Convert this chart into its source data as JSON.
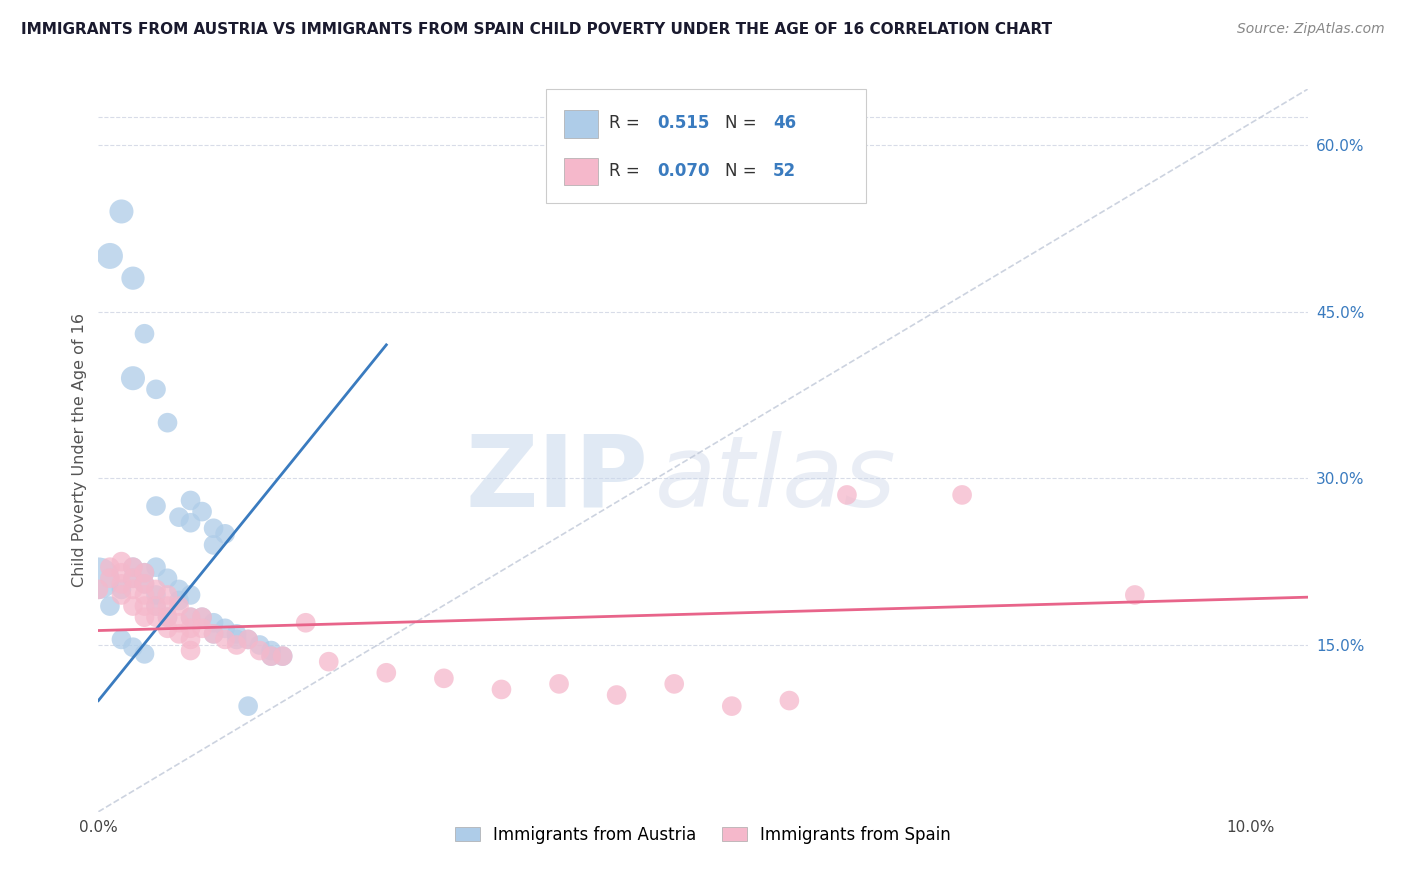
{
  "title": "IMMIGRANTS FROM AUSTRIA VS IMMIGRANTS FROM SPAIN CHILD POVERTY UNDER THE AGE OF 16 CORRELATION CHART",
  "source": "Source: ZipAtlas.com",
  "ylabel": "Child Poverty Under the Age of 16",
  "ylabel_right_labels": [
    "15.0%",
    "30.0%",
    "45.0%",
    "60.0%"
  ],
  "ylabel_right_values": [
    0.15,
    0.3,
    0.45,
    0.6
  ],
  "R_austria": 0.515,
  "N_austria": 46,
  "R_spain": 0.07,
  "N_spain": 52,
  "austria_color": "#aecce8",
  "spain_color": "#f5b8cb",
  "austria_line_color": "#3a7bbf",
  "spain_line_color": "#e8648a",
  "diagonal_color": "#c0c8d8",
  "austria_points": [
    [
      0.0,
      0.21
    ],
    [
      0.001,
      0.5
    ],
    [
      0.002,
      0.54
    ],
    [
      0.003,
      0.48
    ],
    [
      0.003,
      0.39
    ],
    [
      0.004,
      0.43
    ],
    [
      0.005,
      0.38
    ],
    [
      0.006,
      0.35
    ],
    [
      0.005,
      0.275
    ],
    [
      0.007,
      0.265
    ],
    [
      0.008,
      0.28
    ],
    [
      0.008,
      0.26
    ],
    [
      0.009,
      0.27
    ],
    [
      0.01,
      0.255
    ],
    [
      0.01,
      0.24
    ],
    [
      0.011,
      0.25
    ],
    [
      0.001,
      0.185
    ],
    [
      0.002,
      0.2
    ],
    [
      0.003,
      0.22
    ],
    [
      0.003,
      0.21
    ],
    [
      0.004,
      0.215
    ],
    [
      0.004,
      0.205
    ],
    [
      0.005,
      0.22
    ],
    [
      0.005,
      0.195
    ],
    [
      0.006,
      0.21
    ],
    [
      0.005,
      0.185
    ],
    [
      0.006,
      0.175
    ],
    [
      0.007,
      0.2
    ],
    [
      0.007,
      0.19
    ],
    [
      0.008,
      0.195
    ],
    [
      0.008,
      0.175
    ],
    [
      0.009,
      0.175
    ],
    [
      0.01,
      0.17
    ],
    [
      0.01,
      0.16
    ],
    [
      0.011,
      0.165
    ],
    [
      0.012,
      0.16
    ],
    [
      0.012,
      0.155
    ],
    [
      0.013,
      0.155
    ],
    [
      0.014,
      0.15
    ],
    [
      0.015,
      0.145
    ],
    [
      0.015,
      0.14
    ],
    [
      0.016,
      0.14
    ],
    [
      0.002,
      0.155
    ],
    [
      0.003,
      0.148
    ],
    [
      0.004,
      0.142
    ],
    [
      0.013,
      0.095
    ]
  ],
  "spain_points": [
    [
      0.0,
      0.2
    ],
    [
      0.001,
      0.22
    ],
    [
      0.001,
      0.21
    ],
    [
      0.002,
      0.225
    ],
    [
      0.002,
      0.215
    ],
    [
      0.002,
      0.205
    ],
    [
      0.002,
      0.195
    ],
    [
      0.003,
      0.22
    ],
    [
      0.003,
      0.21
    ],
    [
      0.003,
      0.2
    ],
    [
      0.003,
      0.185
    ],
    [
      0.004,
      0.215
    ],
    [
      0.004,
      0.205
    ],
    [
      0.004,
      0.195
    ],
    [
      0.004,
      0.185
    ],
    [
      0.004,
      0.175
    ],
    [
      0.005,
      0.2
    ],
    [
      0.005,
      0.185
    ],
    [
      0.005,
      0.175
    ],
    [
      0.006,
      0.195
    ],
    [
      0.006,
      0.185
    ],
    [
      0.006,
      0.175
    ],
    [
      0.006,
      0.165
    ],
    [
      0.007,
      0.185
    ],
    [
      0.007,
      0.17
    ],
    [
      0.007,
      0.16
    ],
    [
      0.008,
      0.175
    ],
    [
      0.008,
      0.165
    ],
    [
      0.008,
      0.155
    ],
    [
      0.008,
      0.145
    ],
    [
      0.009,
      0.175
    ],
    [
      0.009,
      0.165
    ],
    [
      0.01,
      0.16
    ],
    [
      0.011,
      0.155
    ],
    [
      0.012,
      0.15
    ],
    [
      0.013,
      0.155
    ],
    [
      0.014,
      0.145
    ],
    [
      0.015,
      0.14
    ],
    [
      0.016,
      0.14
    ],
    [
      0.018,
      0.17
    ],
    [
      0.02,
      0.135
    ],
    [
      0.025,
      0.125
    ],
    [
      0.03,
      0.12
    ],
    [
      0.035,
      0.11
    ],
    [
      0.04,
      0.115
    ],
    [
      0.045,
      0.105
    ],
    [
      0.05,
      0.115
    ],
    [
      0.055,
      0.095
    ],
    [
      0.06,
      0.1
    ],
    [
      0.065,
      0.285
    ],
    [
      0.075,
      0.285
    ],
    [
      0.09,
      0.195
    ]
  ],
  "xlim": [
    0.0,
    0.105
  ],
  "ylim": [
    0.0,
    0.65
  ],
  "background_color": "#ffffff",
  "grid_color": "#d8dce8"
}
